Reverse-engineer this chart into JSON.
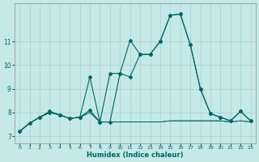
{
  "xlabel": "Humidex (Indice chaleur)",
  "background_color": "#c5e8e8",
  "grid_color": "#a8d0d0",
  "line_color": "#006666",
  "xlim": [
    -0.5,
    23.5
  ],
  "ylim": [
    6.7,
    12.6
  ],
  "yticks": [
    7,
    8,
    9,
    10,
    11
  ],
  "xticks": [
    0,
    1,
    2,
    3,
    4,
    5,
    6,
    7,
    8,
    9,
    10,
    11,
    12,
    13,
    14,
    15,
    16,
    17,
    18,
    19,
    20,
    21,
    22,
    23
  ],
  "series1": [
    7.2,
    7.55,
    7.8,
    8.0,
    7.9,
    7.75,
    7.8,
    9.5,
    7.6,
    9.65,
    9.65,
    11.05,
    10.45,
    10.45,
    11.0,
    12.1,
    12.15,
    10.85,
    9.0,
    7.95,
    7.8,
    7.65,
    8.05,
    7.65
  ],
  "series2": [
    7.2,
    7.55,
    7.8,
    8.05,
    7.9,
    7.75,
    7.8,
    8.1,
    7.6,
    7.6,
    9.65,
    9.5,
    10.45,
    10.45,
    11.0,
    12.1,
    12.15,
    10.85,
    9.0,
    7.95,
    7.8,
    7.65,
    8.05,
    7.65
  ],
  "series3": [
    7.2,
    7.55,
    7.8,
    8.0,
    7.9,
    7.75,
    7.8,
    8.0,
    7.6,
    7.6,
    7.6,
    7.6,
    7.6,
    7.6,
    7.6,
    7.65,
    7.65,
    7.65,
    7.65,
    7.65,
    7.65,
    7.6,
    7.65,
    7.6
  ],
  "series4": [
    7.2,
    7.55,
    7.8,
    8.0,
    7.9,
    7.75,
    7.8,
    8.0,
    7.6,
    7.6,
    7.6,
    7.6,
    7.6,
    7.6,
    7.6,
    7.65,
    7.65,
    7.65,
    7.65,
    7.65,
    7.65,
    7.6,
    7.65,
    7.6
  ]
}
